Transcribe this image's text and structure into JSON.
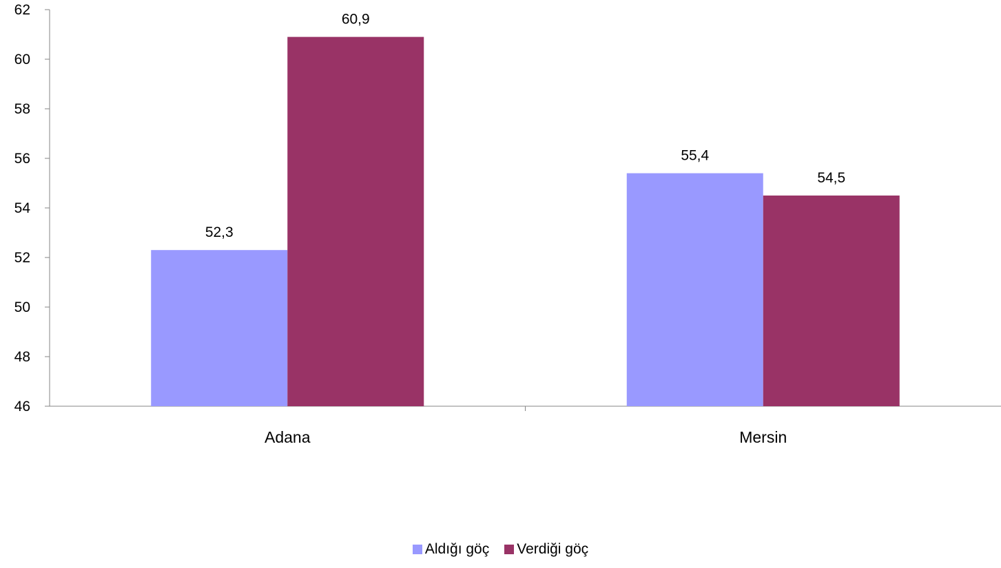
{
  "chart_data": {
    "type": "bar",
    "categories": [
      "Adana",
      "Mersin"
    ],
    "series": [
      {
        "name": "Aldığı göç",
        "values": [
          52.3,
          55.4
        ],
        "labels": [
          "52,3",
          "55,4"
        ],
        "color": "#9999ff"
      },
      {
        "name": "Verdiği göç",
        "values": [
          60.9,
          54.5
        ],
        "labels": [
          "60,9",
          "54,5"
        ],
        "color": "#993366"
      }
    ],
    "ylim": [
      46,
      62
    ],
    "yticks": [
      46,
      48,
      50,
      52,
      54,
      56,
      58,
      60,
      62
    ],
    "grid": false,
    "legend_position": "bottom"
  }
}
